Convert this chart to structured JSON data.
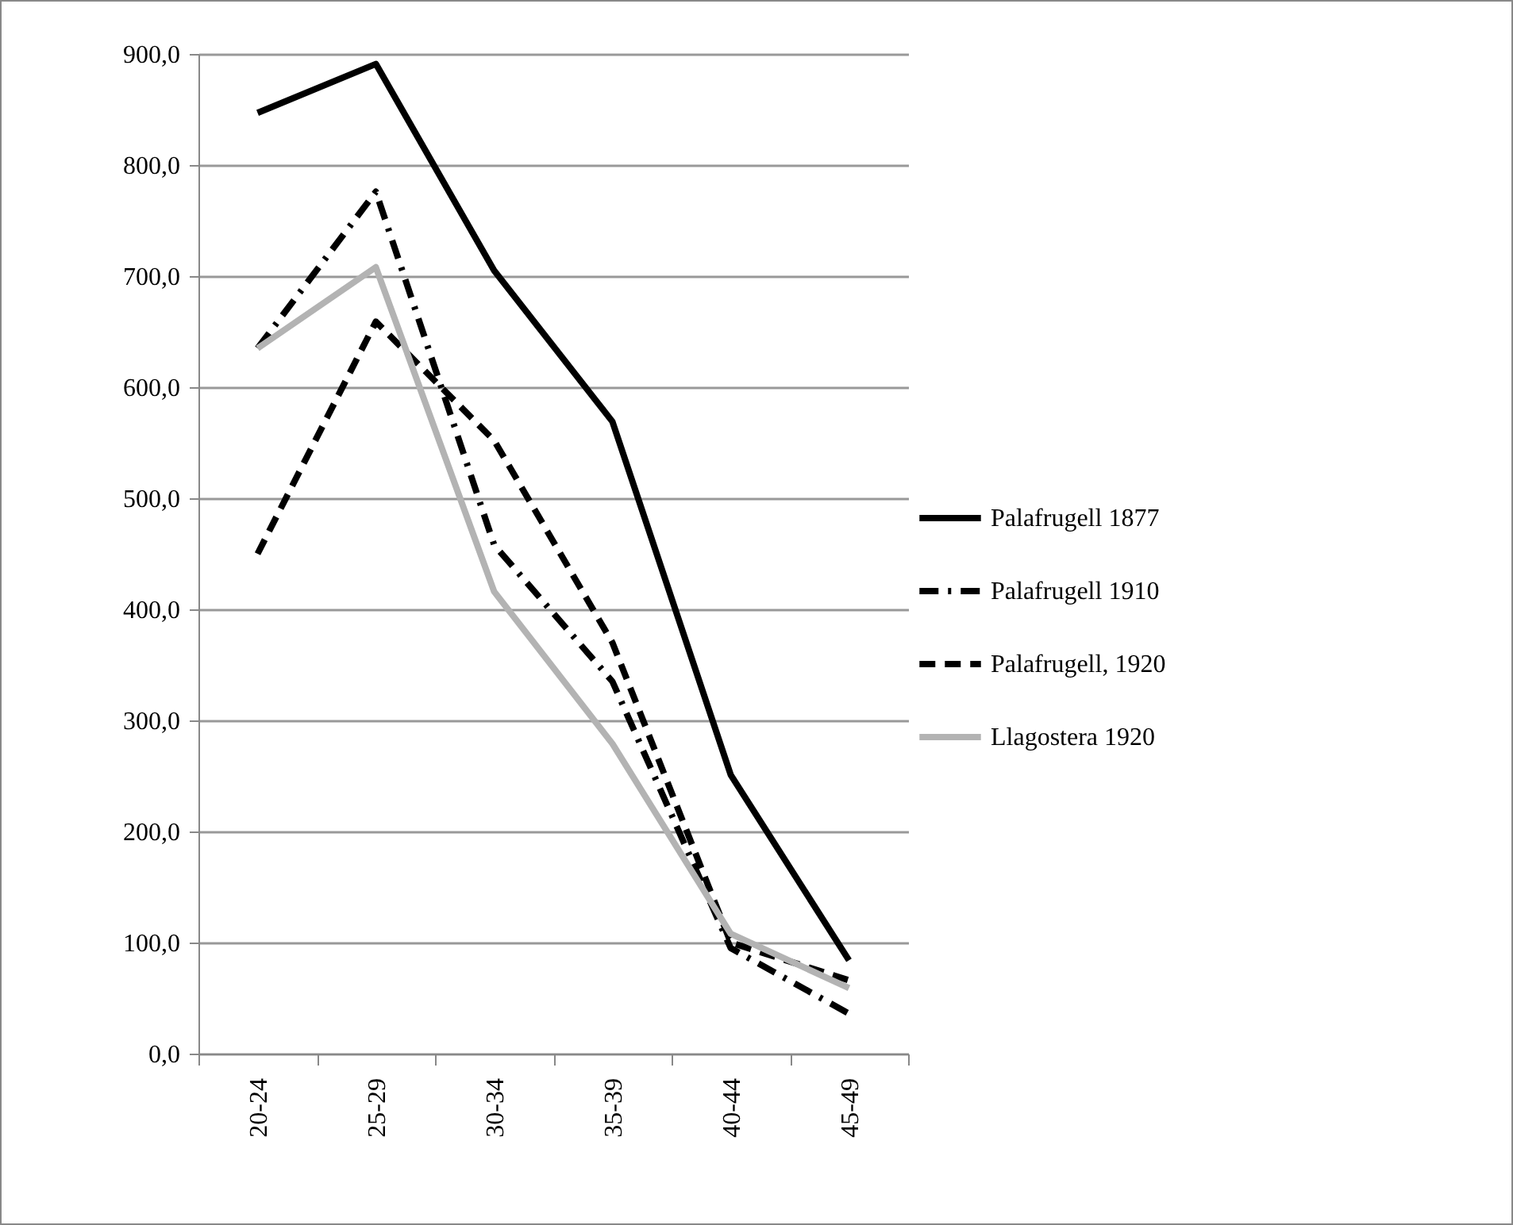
{
  "chart_data": {
    "type": "line",
    "categories": [
      "20-24",
      "25-29",
      "30-34",
      "35-39",
      "40-44",
      "45-49"
    ],
    "series": [
      {
        "name": "Palafrugell 1877",
        "color": "#000000",
        "line_style": "solid",
        "values": [
          847,
          891,
          705,
          569,
          251,
          84
        ]
      },
      {
        "name": "Palafrugell 1910",
        "color": "#000000",
        "line_style": "dashdot",
        "values": [
          635,
          776,
          458,
          335,
          95,
          36
        ]
      },
      {
        "name": "Palafrugell, 1920",
        "color": "#000000",
        "line_style": "dashed",
        "values": [
          450,
          659,
          552,
          370,
          100,
          66
        ]
      },
      {
        "name": "Llagostera 1920",
        "color": "#b3b3b3",
        "line_style": "solid",
        "values": [
          635,
          708,
          416,
          279,
          108,
          59
        ]
      }
    ],
    "ylim": [
      0,
      900
    ],
    "yticks": [
      {
        "value": 0,
        "label": "0,0"
      },
      {
        "value": 100,
        "label": "100,0"
      },
      {
        "value": 200,
        "label": "200,0"
      },
      {
        "value": 300,
        "label": "300,0"
      },
      {
        "value": 400,
        "label": "400,0"
      },
      {
        "value": 500,
        "label": "500,0"
      },
      {
        "value": 600,
        "label": "600,0"
      },
      {
        "value": 700,
        "label": "700,0"
      },
      {
        "value": 800,
        "label": "800,0"
      },
      {
        "value": 900,
        "label": "900,0"
      }
    ],
    "grid": "y",
    "legend": "right"
  }
}
